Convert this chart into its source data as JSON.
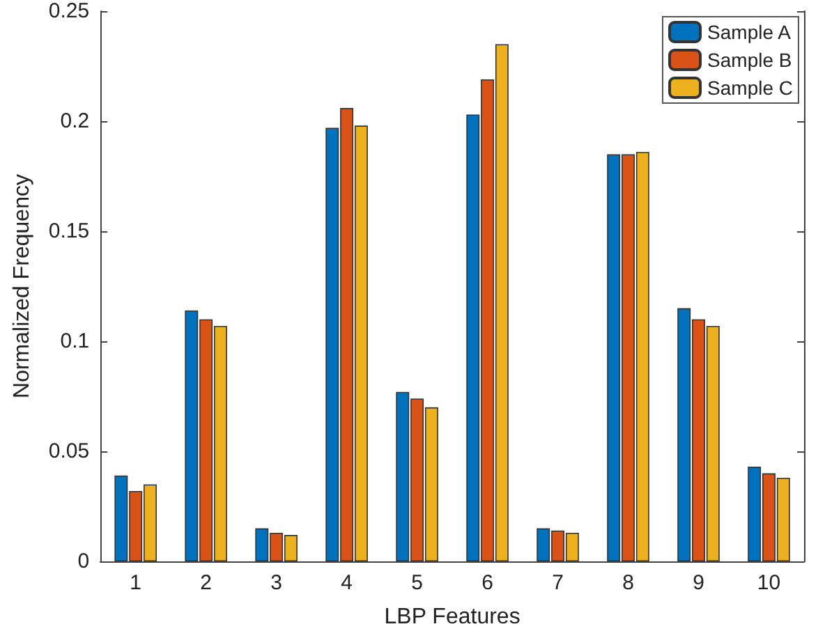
{
  "chart_data": {
    "type": "bar",
    "xlabel": "LBP Features",
    "ylabel": "Normalized Frequency",
    "categories": [
      "1",
      "2",
      "3",
      "4",
      "5",
      "6",
      "7",
      "8",
      "9",
      "10"
    ],
    "series": [
      {
        "name": "Sample A",
        "color": "#0072bd",
        "values": [
          0.039,
          0.114,
          0.015,
          0.197,
          0.077,
          0.203,
          0.015,
          0.185,
          0.115,
          0.043
        ]
      },
      {
        "name": "Sample B",
        "color": "#d95319",
        "values": [
          0.032,
          0.11,
          0.013,
          0.206,
          0.074,
          0.219,
          0.014,
          0.185,
          0.11,
          0.04
        ]
      },
      {
        "name": "Sample C",
        "color": "#edb120",
        "values": [
          0.035,
          0.107,
          0.012,
          0.198,
          0.07,
          0.235,
          0.013,
          0.186,
          0.107,
          0.038
        ]
      }
    ],
    "ylim": [
      0,
      0.25
    ],
    "yticks": [
      0,
      0.05,
      0.1,
      0.15,
      0.2,
      0.25
    ],
    "grid": false,
    "legend": "top right"
  }
}
